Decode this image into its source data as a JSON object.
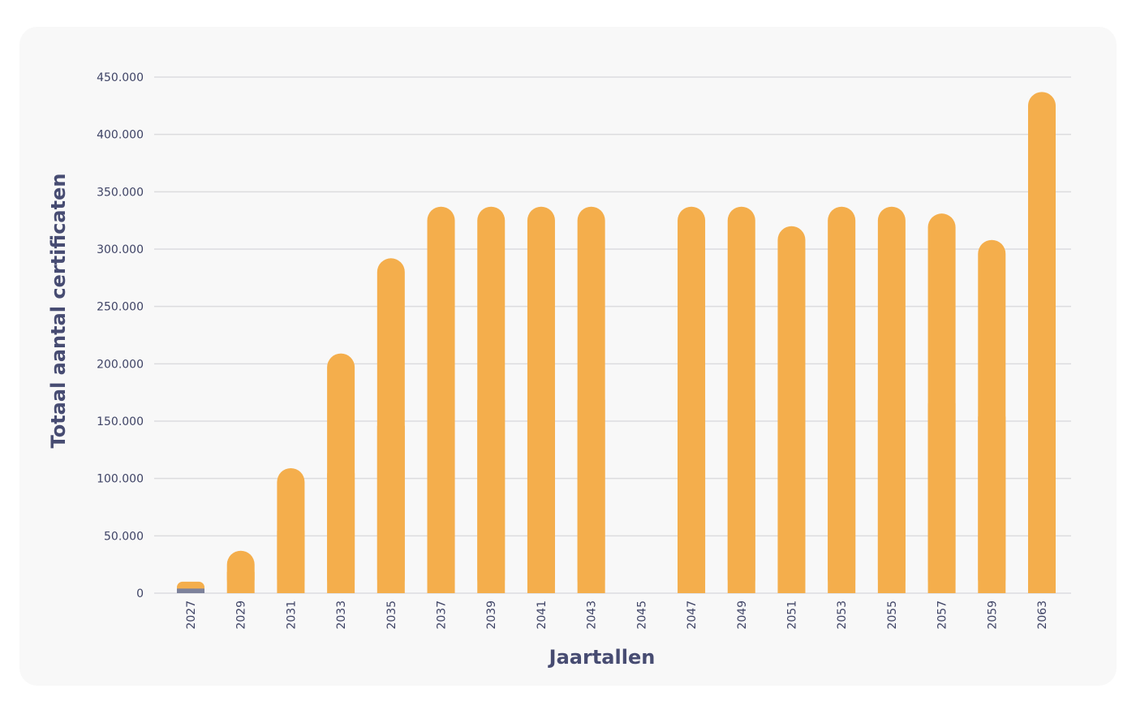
{
  "chart_data": {
    "type": "bar",
    "title": "",
    "xlabel": "Jaartallen",
    "ylabel": "Totaal aantal certificaten",
    "ylim": [
      0,
      450000
    ],
    "y_ticks": [
      0,
      50000,
      100000,
      150000,
      200000,
      250000,
      300000,
      350000,
      400000,
      450000
    ],
    "y_tick_labels": [
      "0",
      "50.000",
      "100.000",
      "150.000",
      "200.000",
      "250.000",
      "300.000",
      "350.000",
      "400.000",
      "450.000"
    ],
    "categories": [
      "2027",
      "2029",
      "2031",
      "2033",
      "2035",
      "2037",
      "2039",
      "2041",
      "2043",
      "2045",
      "2047",
      "2049",
      "2051",
      "2053",
      "2055",
      "2057",
      "2059",
      "2063"
    ],
    "grid": true,
    "colors": {
      "bar": "#f4ae4c",
      "small_segment": "#7d829b",
      "grid": "#dcdcdf",
      "axis_text": "#3f4466",
      "axis_title": "#474c72"
    },
    "series": [
      {
        "values": [
          10000,
          37000,
          109000,
          209000,
          292000,
          337000,
          337000,
          337000,
          337000,
          null,
          337000,
          337000,
          320000,
          337000,
          337000,
          331000,
          308000,
          437000
        ]
      }
    ],
    "highlight_segments": [
      {
        "category": "2027",
        "value": 4000
      }
    ]
  }
}
